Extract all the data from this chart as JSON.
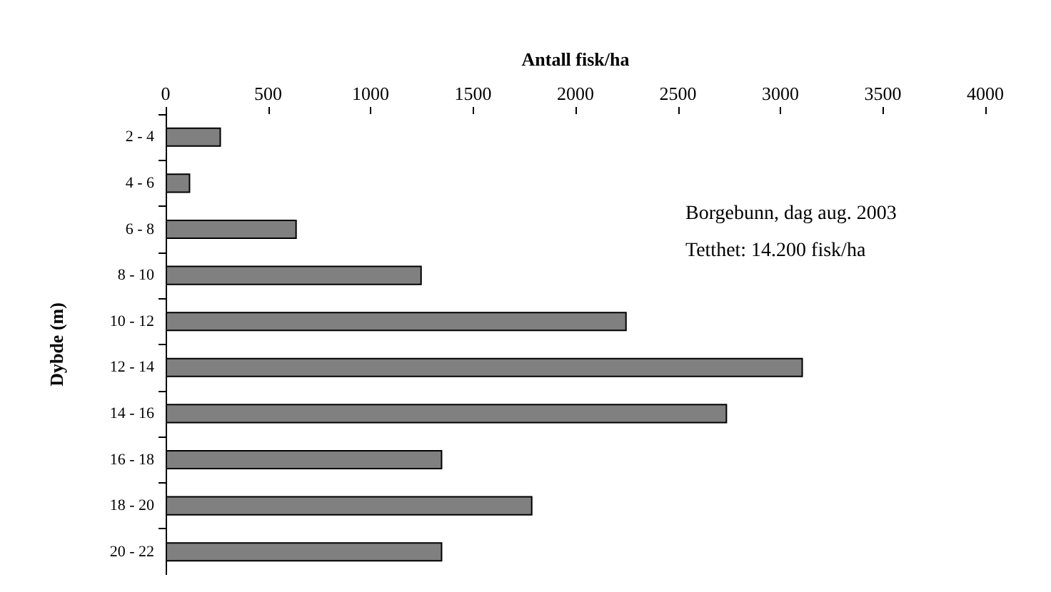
{
  "chart_data": {
    "type": "bar",
    "orientation": "horizontal",
    "xlabel": "Antall fisk/ha",
    "ylabel": "Dybde (m)",
    "categories": [
      "2 - 4",
      "4 - 6",
      "6 - 8",
      "8 - 10",
      "10 - 12",
      "12 - 14",
      "14 - 16",
      "16 - 18",
      "18 - 20",
      "20 - 22"
    ],
    "values": [
      270,
      120,
      640,
      1250,
      2250,
      3110,
      2740,
      1350,
      1790,
      1350
    ],
    "color": "#808080",
    "xlim": [
      0,
      4000
    ],
    "xticks": [
      0,
      500,
      1000,
      1500,
      2000,
      2500,
      3000,
      3500,
      4000
    ],
    "grid": false,
    "annotations": [
      "Borgebunn, dag aug. 2003",
      "Tetthet: 14.200 fisk/ha"
    ]
  }
}
